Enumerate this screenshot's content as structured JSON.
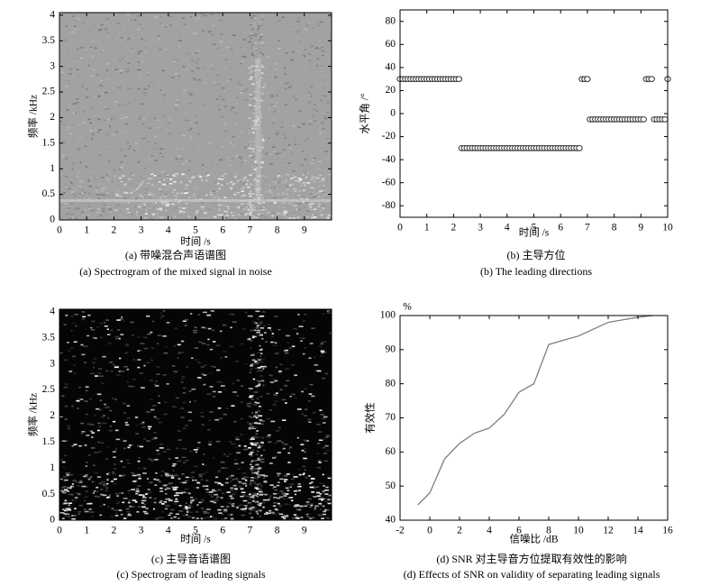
{
  "chart_data": [
    {
      "type": "spectrogram",
      "style": "noisy",
      "xlabel": "时间 /s",
      "ylabel": "频率 /kHz",
      "title": "(a) 带噪混合声语谱图",
      "subtitle": "(a) Spectrogram of the mixed signal in noise",
      "xlim": [
        0,
        10
      ],
      "ylim": [
        0,
        4.05
      ],
      "xticks": [
        0,
        1,
        2,
        3,
        4,
        5,
        6,
        7,
        8,
        9
      ],
      "yticks": [
        0,
        0.5,
        1,
        1.5,
        2,
        2.5,
        3,
        3.5,
        4
      ]
    },
    {
      "type": "scatter",
      "xlabel": "时间 /s",
      "ylabel": "水平角 /°",
      "title": "(b) 主导方位",
      "subtitle": "(b) The leading directions",
      "color": "#333333",
      "xlim": [
        0,
        10
      ],
      "ylim": [
        -90,
        90
      ],
      "xticks": [
        0,
        1,
        2,
        3,
        4,
        5,
        6,
        7,
        8,
        9,
        10
      ],
      "yticks": [
        -80,
        -60,
        -40,
        -20,
        0,
        20,
        40,
        60,
        80
      ],
      "x": [
        0,
        0.1,
        0.2,
        0.3,
        0.4,
        0.5,
        0.6,
        0.7,
        0.8,
        0.9,
        1,
        1.1,
        1.2,
        1.3,
        1.4,
        1.5,
        1.6,
        1.7,
        1.8,
        1.9,
        2,
        2.1,
        2.2,
        2.3,
        2.4,
        2.5,
        2.6,
        2.7,
        2.8,
        2.9,
        3,
        3.1,
        3.2,
        3.3,
        3.4,
        3.5,
        3.6,
        3.7,
        3.8,
        3.9,
        4,
        4.1,
        4.2,
        4.3,
        4.4,
        4.5,
        4.6,
        4.7,
        4.8,
        4.9,
        5,
        5.1,
        5.2,
        5.3,
        5.4,
        5.5,
        5.6,
        5.7,
        5.8,
        5.9,
        6,
        6.1,
        6.2,
        6.3,
        6.4,
        6.5,
        6.6,
        6.7,
        6.8,
        6.9,
        7,
        7.1,
        7.2,
        7.3,
        7.4,
        7.5,
        7.6,
        7.7,
        7.8,
        7.9,
        8,
        8.1,
        8.2,
        8.3,
        8.4,
        8.5,
        8.6,
        8.7,
        8.8,
        8.9,
        9,
        9.1,
        9.2,
        9.3,
        9.4,
        9.5,
        9.6,
        9.7,
        9.8,
        9.9,
        10
      ],
      "values": [
        30,
        30,
        30,
        30,
        30,
        30,
        30,
        30,
        30,
        30,
        30,
        30,
        30,
        30,
        30,
        30,
        30,
        30,
        30,
        30,
        30,
        30,
        30,
        -30,
        -30,
        -30,
        -30,
        -30,
        -30,
        -30,
        -30,
        -30,
        -30,
        -30,
        -30,
        -30,
        -30,
        -30,
        -30,
        -30,
        -30,
        -30,
        -30,
        -30,
        -30,
        -30,
        -30,
        -30,
        -30,
        -30,
        -30,
        -30,
        -30,
        -30,
        -30,
        -30,
        -30,
        -30,
        -30,
        -30,
        -30,
        -30,
        -30,
        -30,
        -30,
        -30,
        -30,
        -30,
        30,
        30,
        30,
        -5,
        -5,
        -5,
        -5,
        -5,
        -5,
        -5,
        -5,
        -5,
        -5,
        -5,
        -5,
        -5,
        -5,
        -5,
        -5,
        -5,
        -5,
        -5,
        -5,
        -5,
        30,
        30,
        30,
        -5,
        -5,
        -5,
        -5,
        -5,
        30
      ]
    },
    {
      "type": "spectrogram",
      "style": "dark",
      "xlabel": "时间 /s",
      "ylabel": "频率 /kHz",
      "title": "(c) 主导音语谱图",
      "subtitle": "(c) Spectrogram of leading signals",
      "xlim": [
        0,
        10
      ],
      "ylim": [
        0,
        4.05
      ],
      "xticks": [
        0,
        1,
        2,
        3,
        4,
        5,
        6,
        7,
        8,
        9
      ],
      "yticks": [
        0,
        0.5,
        1,
        1.5,
        2,
        2.5,
        3,
        3.5,
        4
      ]
    },
    {
      "type": "line",
      "xlabel": "信噪比 /dB",
      "ylabel": "有效性",
      "yunit": "%",
      "title": "(d) SNR 对主导音方位提取有效性的影响",
      "subtitle": "(d) Effects of SNR on validity of separating leading signals",
      "color": "#777777",
      "xlim": [
        -2,
        16
      ],
      "ylim": [
        40,
        100
      ],
      "xticks": [
        -2,
        0,
        2,
        4,
        6,
        8,
        10,
        12,
        14,
        16
      ],
      "yticks": [
        40,
        50,
        60,
        70,
        80,
        90,
        100
      ],
      "x": [
        -0.8,
        0,
        1,
        2,
        3,
        4,
        5,
        6,
        7,
        8,
        10,
        12,
        14,
        15
      ],
      "values": [
        44.5,
        48,
        58,
        62.5,
        65.5,
        67,
        71,
        77.5,
        80,
        91.5,
        94,
        98,
        99.5,
        100
      ]
    }
  ]
}
